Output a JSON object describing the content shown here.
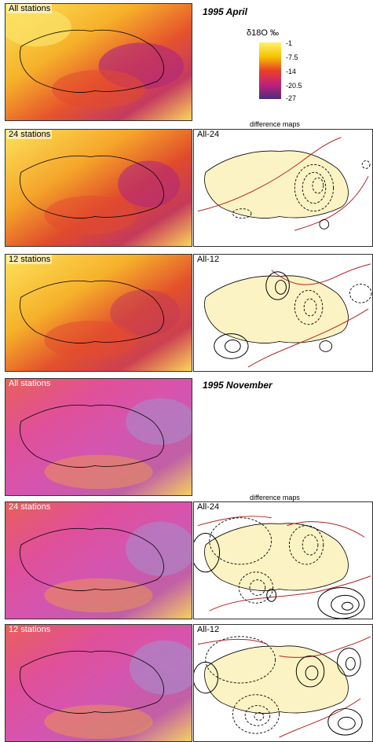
{
  "sections": [
    {
      "title": "1995 April",
      "diff_caption": "difference maps",
      "maps": [
        {
          "label": "All stations"
        },
        {
          "label": "24 stations"
        },
        {
          "label": "12 stations"
        }
      ],
      "diffs": [
        {
          "label": "All-24"
        },
        {
          "label": "All-12"
        }
      ]
    },
    {
      "title": "1995 November",
      "diff_caption": "difference maps",
      "maps": [
        {
          "label": "All stations"
        },
        {
          "label": "24 stations"
        },
        {
          "label": "12 stations"
        }
      ],
      "diffs": [
        {
          "label": "All-24"
        },
        {
          "label": "All-12"
        }
      ]
    }
  ],
  "legend": {
    "unit": "δ18O ‰",
    "ticks": [
      "-1",
      "-7.5",
      "-14",
      "-20.5",
      "-27"
    ],
    "colors": [
      "#fff06a",
      "#f5c400",
      "#e8402a",
      "#c0207a",
      "#4a2d7a"
    ]
  },
  "colors": {
    "swiss_fill": "#fbf3c3",
    "border_line": "#000000",
    "zero_contour": "#b22222",
    "panel_border": "#333333"
  }
}
